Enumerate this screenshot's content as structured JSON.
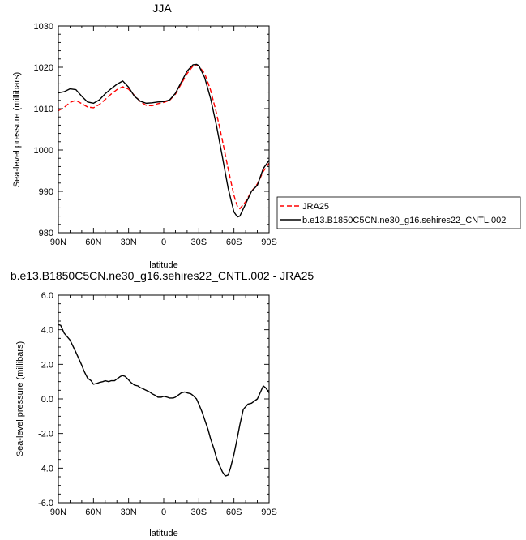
{
  "chart_data": [
    {
      "type": "line",
      "title": "JJA",
      "xlabel": "latitude",
      "ylabel": "Sea-level pressure (millibars)",
      "x_tick_labels": [
        "90N",
        "60N",
        "30N",
        "0",
        "30S",
        "60S",
        "90S"
      ],
      "x_tick_values": [
        90,
        60,
        30,
        0,
        -30,
        -60,
        -90
      ],
      "xlim": [
        90,
        -90
      ],
      "y_tick_labels": [
        "980",
        "990",
        "1000",
        "1010",
        "1020",
        "1030"
      ],
      "y_tick_values": [
        980,
        990,
        1000,
        1010,
        1020,
        1030
      ],
      "ylim": [
        980,
        1030
      ],
      "grid": false,
      "legend_position": "outside-right",
      "series": [
        {
          "name": "JRA25",
          "color": "#ff0000",
          "dash": "dashed",
          "x": [
            90,
            85,
            80,
            75,
            70,
            65,
            60,
            55,
            50,
            45,
            40,
            35,
            30,
            25,
            20,
            15,
            10,
            5,
            0,
            -5,
            -10,
            -15,
            -20,
            -25,
            -28,
            -30,
            -35,
            -40,
            -45,
            -50,
            -55,
            -60,
            -63,
            -65,
            -70,
            -75,
            -80,
            -85,
            -90
          ],
          "y": [
            1009.5,
            1010.3,
            1011.5,
            1012.0,
            1011.2,
            1010.4,
            1010.2,
            1011.0,
            1012.2,
            1013.5,
            1014.6,
            1015.3,
            1014.7,
            1013.2,
            1011.7,
            1010.8,
            1010.7,
            1011.2,
            1011.5,
            1012.0,
            1013.5,
            1016.0,
            1018.5,
            1020.3,
            1020.6,
            1020.3,
            1018.5,
            1014.5,
            1009.0,
            1002.5,
            995.5,
            989.0,
            986.3,
            985.8,
            987.5,
            990.0,
            991.8,
            994.8,
            996.8
          ]
        },
        {
          "name": "b.e13.B1850C5CN.ne30_g16.sehires22_CNTL.002",
          "color": "#000000",
          "dash": "solid",
          "x": [
            90,
            85,
            80,
            75,
            70,
            65,
            60,
            55,
            50,
            45,
            40,
            35,
            30,
            25,
            20,
            15,
            10,
            5,
            0,
            -5,
            -10,
            -15,
            -20,
            -25,
            -28,
            -30,
            -35,
            -40,
            -45,
            -50,
            -55,
            -60,
            -63,
            -65,
            -70,
            -75,
            -80,
            -85,
            -90
          ],
          "y": [
            1013.8,
            1014.1,
            1014.8,
            1014.6,
            1013.0,
            1011.6,
            1011.3,
            1012.1,
            1013.6,
            1014.8,
            1015.9,
            1016.7,
            1015.2,
            1013.0,
            1011.8,
            1011.3,
            1011.4,
            1011.6,
            1011.7,
            1012.1,
            1013.7,
            1016.4,
            1019.1,
            1020.6,
            1020.7,
            1020.4,
            1017.5,
            1012.5,
            1006.0,
            998.5,
            990.8,
            985.0,
            983.8,
            984.0,
            987.0,
            990.0,
            991.5,
            995.5,
            997.5
          ]
        }
      ]
    },
    {
      "type": "line",
      "title": "b.e13.B1850C5CN.ne30_g16.sehires22_CNTL.002 - JRA25",
      "xlabel": "latitude",
      "ylabel": "Sea-level pressure (millibars)",
      "x_tick_labels": [
        "90N",
        "60N",
        "30N",
        "0",
        "30S",
        "60S",
        "90S"
      ],
      "x_tick_values": [
        90,
        60,
        30,
        0,
        -30,
        -60,
        -90
      ],
      "xlim": [
        90,
        -90
      ],
      "y_tick_labels": [
        "-6.0",
        "-4.0",
        "-2.0",
        "0.0",
        "2.0",
        "4.0",
        "6.0"
      ],
      "y_tick_values": [
        -6,
        -4,
        -2,
        0,
        2,
        4,
        6
      ],
      "ylim": [
        -6,
        6
      ],
      "grid": false,
      "series": [
        {
          "color": "#000000",
          "dash": "solid",
          "x": [
            90,
            88,
            85,
            80,
            75,
            70,
            68,
            65,
            62,
            60,
            57,
            55,
            52,
            50,
            47,
            45,
            42,
            40,
            37,
            35,
            33,
            30,
            28,
            25,
            22,
            20,
            18,
            15,
            12,
            10,
            7,
            5,
            2,
            0,
            -3,
            -5,
            -8,
            -10,
            -13,
            -15,
            -18,
            -20,
            -23,
            -25,
            -28,
            -30,
            -33,
            -35,
            -38,
            -40,
            -43,
            -45,
            -48,
            -50,
            -52,
            -53,
            -55,
            -57,
            -60,
            -63,
            -65,
            -68,
            -70,
            -72,
            -75,
            -77,
            -80,
            -82,
            -85,
            -87,
            -90
          ],
          "y": [
            4.3,
            4.25,
            3.8,
            3.4,
            2.7,
            1.95,
            1.6,
            1.2,
            1.05,
            0.85,
            0.9,
            0.95,
            1.0,
            1.05,
            1.0,
            1.05,
            1.05,
            1.15,
            1.3,
            1.35,
            1.3,
            1.1,
            0.95,
            0.8,
            0.75,
            0.65,
            0.6,
            0.5,
            0.4,
            0.3,
            0.2,
            0.1,
            0.1,
            0.15,
            0.1,
            0.05,
            0.05,
            0.1,
            0.25,
            0.35,
            0.4,
            0.35,
            0.3,
            0.2,
            0.0,
            -0.3,
            -0.8,
            -1.2,
            -1.8,
            -2.3,
            -2.9,
            -3.4,
            -3.9,
            -4.2,
            -4.4,
            -4.45,
            -4.4,
            -4.0,
            -3.2,
            -2.2,
            -1.5,
            -0.6,
            -0.45,
            -0.3,
            -0.25,
            -0.15,
            0.0,
            0.3,
            0.75,
            0.65,
            0.35
          ]
        }
      ]
    }
  ]
}
